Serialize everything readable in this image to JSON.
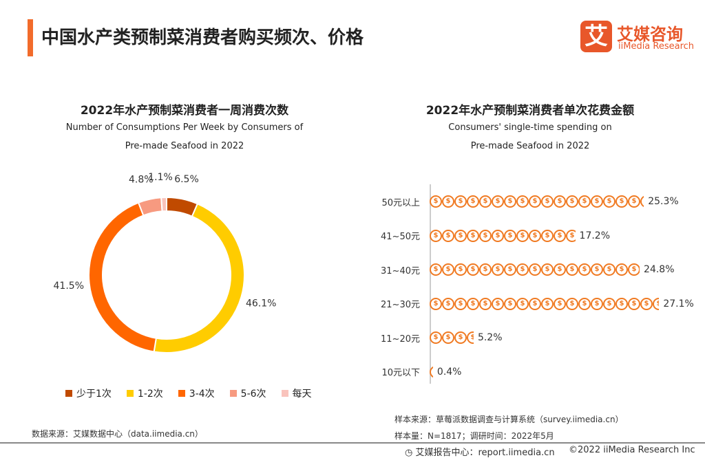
{
  "header": {
    "title": "中国水产类预制菜消费者购买频次、价格",
    "logo_mark": "艾",
    "logo_cn": "艾媒咨询",
    "logo_en": "iiMedia Research"
  },
  "chart_data": [
    {
      "type": "pie",
      "title": "2022年水产预制菜消费者一周消费次数",
      "subtitle_line1": "Number of Consumptions Per Week by Consumers of",
      "subtitle_line2": "Pre-made Seafood in 2022",
      "categories": [
        "少于1次",
        "1-2次",
        "3-4次",
        "5-6次",
        "每天"
      ],
      "values": [
        6.5,
        46.1,
        41.5,
        4.8,
        1.1
      ],
      "labels": [
        "6.5%",
        "46.1%",
        "41.5%",
        "4.8%",
        "1.1%"
      ],
      "colors": [
        "#C04A00",
        "#FFCC00",
        "#FF6600",
        "#F79A80",
        "#F9C3BC"
      ],
      "legend": "bottom",
      "donut": true
    },
    {
      "type": "bar",
      "title": "2022年水产预制菜消费者单次花费金额",
      "subtitle_line1": "Consumers' single-time spending on",
      "subtitle_line2": "Pre-made Seafood in 2022",
      "categories": [
        "50元以上",
        "41~50元",
        "31~40元",
        "21~30元",
        "11~20元",
        "10元以下"
      ],
      "values": [
        25.3,
        17.2,
        24.8,
        27.1,
        5.2,
        0.4
      ],
      "labels": [
        "25.3%",
        "17.2%",
        "24.8%",
        "27.1%",
        "5.2%",
        "0.4%"
      ],
      "color": "#F07A22",
      "icon": "dollar-coin-icon",
      "coin_symbol": "$"
    }
  ],
  "footer": {
    "source_left": "数据来源：艾媒数据中心（data.iimedia.cn）",
    "sample_source": "样本来源：草莓派数据调查与计算系统（survey.iimedia.cn）",
    "sample_size": "样本量：N=1817；调研时间：2022年5月",
    "report": "艾媒报告中心：report.iimedia.cn",
    "copyright": "©2022  iiMedia Research  Inc"
  }
}
